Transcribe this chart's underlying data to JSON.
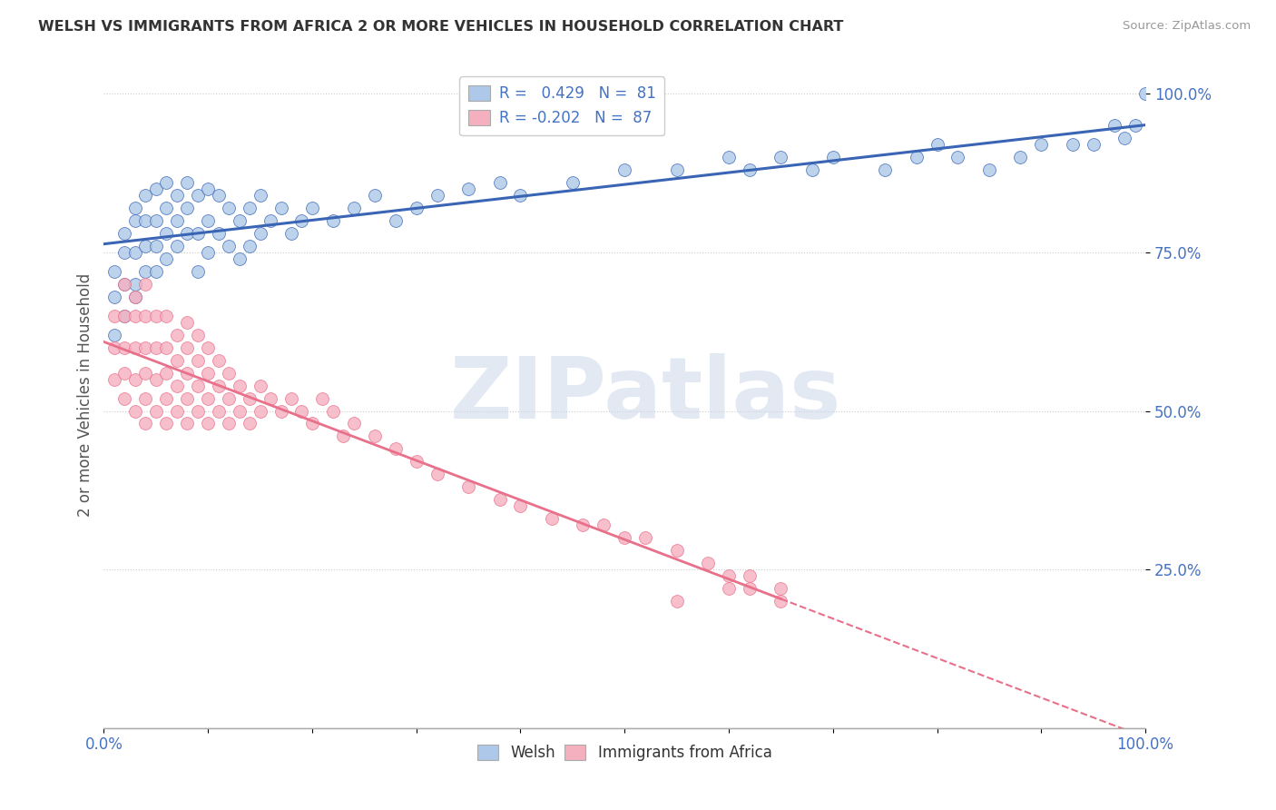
{
  "title": "WELSH VS IMMIGRANTS FROM AFRICA 2 OR MORE VEHICLES IN HOUSEHOLD CORRELATION CHART",
  "source": "Source: ZipAtlas.com",
  "ylabel": "2 or more Vehicles in Household",
  "watermark": "ZIPatlas",
  "R_welsh": 0.429,
  "N_welsh": 81,
  "R_africa": -0.202,
  "N_africa": 87,
  "welsh_color": "#adc8e8",
  "africa_color": "#f5b0c0",
  "welsh_line_color": "#3a65b5",
  "africa_line_color": "#e8708a",
  "background_color": "#ffffff",
  "xlim": [
    0.0,
    1.0
  ],
  "ylim": [
    0.0,
    1.05
  ],
  "welsh_scatter_x": [
    0.01,
    0.01,
    0.01,
    0.02,
    0.02,
    0.02,
    0.02,
    0.03,
    0.03,
    0.03,
    0.03,
    0.03,
    0.04,
    0.04,
    0.04,
    0.04,
    0.05,
    0.05,
    0.05,
    0.05,
    0.06,
    0.06,
    0.06,
    0.06,
    0.07,
    0.07,
    0.07,
    0.08,
    0.08,
    0.08,
    0.09,
    0.09,
    0.09,
    0.1,
    0.1,
    0.1,
    0.11,
    0.11,
    0.12,
    0.12,
    0.13,
    0.13,
    0.14,
    0.14,
    0.15,
    0.15,
    0.16,
    0.17,
    0.18,
    0.19,
    0.2,
    0.22,
    0.24,
    0.26,
    0.28,
    0.3,
    0.32,
    0.35,
    0.38,
    0.4,
    0.45,
    0.5,
    0.55,
    0.6,
    0.62,
    0.65,
    0.68,
    0.7,
    0.75,
    0.78,
    0.8,
    0.82,
    0.85,
    0.88,
    0.9,
    0.93,
    0.95,
    0.97,
    0.98,
    0.99,
    1.0
  ],
  "welsh_scatter_y": [
    0.62,
    0.68,
    0.72,
    0.65,
    0.7,
    0.75,
    0.78,
    0.7,
    0.75,
    0.8,
    0.82,
    0.68,
    0.72,
    0.76,
    0.8,
    0.84,
    0.72,
    0.76,
    0.8,
    0.85,
    0.74,
    0.78,
    0.82,
    0.86,
    0.76,
    0.8,
    0.84,
    0.78,
    0.82,
    0.86,
    0.72,
    0.78,
    0.84,
    0.75,
    0.8,
    0.85,
    0.78,
    0.84,
    0.76,
    0.82,
    0.74,
    0.8,
    0.76,
    0.82,
    0.78,
    0.84,
    0.8,
    0.82,
    0.78,
    0.8,
    0.82,
    0.8,
    0.82,
    0.84,
    0.8,
    0.82,
    0.84,
    0.85,
    0.86,
    0.84,
    0.86,
    0.88,
    0.88,
    0.9,
    0.88,
    0.9,
    0.88,
    0.9,
    0.88,
    0.9,
    0.92,
    0.9,
    0.88,
    0.9,
    0.92,
    0.92,
    0.92,
    0.95,
    0.93,
    0.95,
    1.0
  ],
  "africa_scatter_x": [
    0.01,
    0.01,
    0.01,
    0.02,
    0.02,
    0.02,
    0.02,
    0.02,
    0.03,
    0.03,
    0.03,
    0.03,
    0.03,
    0.04,
    0.04,
    0.04,
    0.04,
    0.04,
    0.04,
    0.05,
    0.05,
    0.05,
    0.05,
    0.06,
    0.06,
    0.06,
    0.06,
    0.06,
    0.07,
    0.07,
    0.07,
    0.07,
    0.08,
    0.08,
    0.08,
    0.08,
    0.08,
    0.09,
    0.09,
    0.09,
    0.09,
    0.1,
    0.1,
    0.1,
    0.1,
    0.11,
    0.11,
    0.11,
    0.12,
    0.12,
    0.12,
    0.13,
    0.13,
    0.14,
    0.14,
    0.15,
    0.15,
    0.16,
    0.17,
    0.18,
    0.19,
    0.2,
    0.21,
    0.22,
    0.23,
    0.24,
    0.26,
    0.28,
    0.3,
    0.32,
    0.35,
    0.38,
    0.4,
    0.43,
    0.46,
    0.5,
    0.55,
    0.6,
    0.62,
    0.65,
    0.48,
    0.52,
    0.55,
    0.58,
    0.6,
    0.62,
    0.65
  ],
  "africa_scatter_y": [
    0.55,
    0.6,
    0.65,
    0.52,
    0.56,
    0.6,
    0.65,
    0.7,
    0.5,
    0.55,
    0.6,
    0.65,
    0.68,
    0.48,
    0.52,
    0.56,
    0.6,
    0.65,
    0.7,
    0.5,
    0.55,
    0.6,
    0.65,
    0.48,
    0.52,
    0.56,
    0.6,
    0.65,
    0.5,
    0.54,
    0.58,
    0.62,
    0.48,
    0.52,
    0.56,
    0.6,
    0.64,
    0.5,
    0.54,
    0.58,
    0.62,
    0.48,
    0.52,
    0.56,
    0.6,
    0.5,
    0.54,
    0.58,
    0.48,
    0.52,
    0.56,
    0.5,
    0.54,
    0.48,
    0.52,
    0.5,
    0.54,
    0.52,
    0.5,
    0.52,
    0.5,
    0.48,
    0.52,
    0.5,
    0.46,
    0.48,
    0.46,
    0.44,
    0.42,
    0.4,
    0.38,
    0.36,
    0.35,
    0.33,
    0.32,
    0.3,
    0.2,
    0.22,
    0.24,
    0.22,
    0.32,
    0.3,
    0.28,
    0.26,
    0.24,
    0.22,
    0.2
  ]
}
